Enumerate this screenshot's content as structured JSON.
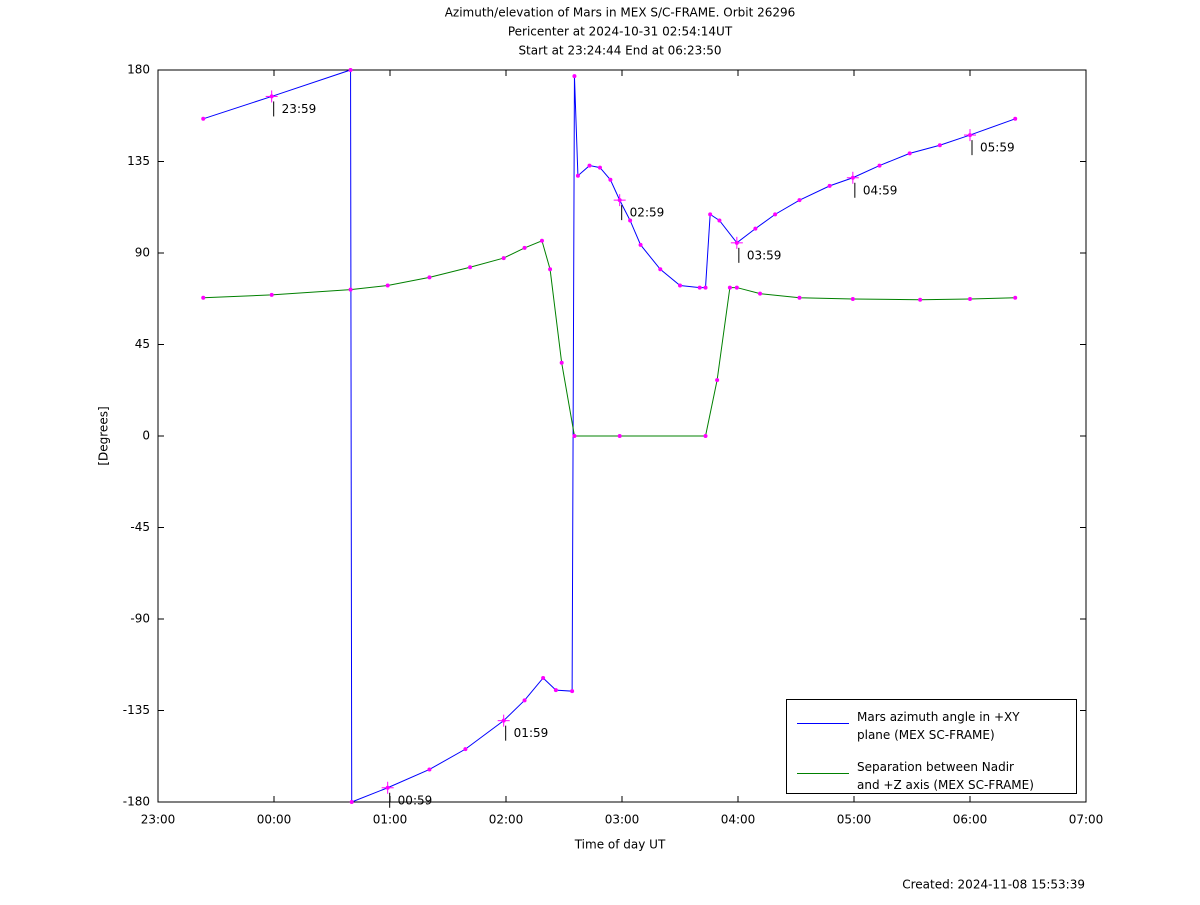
{
  "chart_data": {
    "type": "line",
    "title": "Azimuth/elevation of Mars in MEX S/C-FRAME.  Orbit 26296",
    "subtitle": [
      "Pericenter at 2024-10-31 02:54:14UT",
      "Start at 23:24:44 End at 06:23:50"
    ],
    "xlabel": "Time of day UT",
    "ylabel": "[Degrees]",
    "footnote": "Created: 2024-11-08 15:53:39",
    "xlim": [
      0,
      8
    ],
    "xticks": [
      {
        "value": 0,
        "label": "23:00"
      },
      {
        "value": 1,
        "label": "00:00"
      },
      {
        "value": 2,
        "label": "01:00"
      },
      {
        "value": 3,
        "label": "02:00"
      },
      {
        "value": 4,
        "label": "03:00"
      },
      {
        "value": 5,
        "label": "04:00"
      },
      {
        "value": 6,
        "label": "05:00"
      },
      {
        "value": 7,
        "label": "06:00"
      },
      {
        "value": 8,
        "label": "07:00"
      }
    ],
    "ylim": [
      -180,
      180
    ],
    "yticks": [
      180,
      135,
      90,
      45,
      0,
      -45,
      -90,
      -135,
      -180
    ],
    "legend": "lower right",
    "marker_color": "#ff00ff",
    "series": [
      {
        "name": "Mars azimuth angle in +XY\nplane (MEX SC-FRAME)",
        "color": "#0000ff",
        "x": [
          0.39,
          0.98,
          1.66,
          1.67,
          1.98,
          2.34,
          2.65,
          2.98,
          3.16,
          3.32,
          3.43,
          3.57,
          3.59,
          3.62,
          3.72,
          3.81,
          3.9,
          3.98,
          4.07,
          4.16,
          4.33,
          4.5,
          4.67,
          4.72,
          4.76,
          4.84,
          4.99,
          5.15,
          5.32,
          5.53,
          5.79,
          5.99,
          6.22,
          6.48,
          6.74,
          7.0,
          7.39
        ],
        "values": [
          156,
          167,
          180,
          -180,
          -173,
          -164,
          -154,
          -140,
          -130,
          -119,
          -125,
          -125.5,
          177,
          128,
          133,
          132,
          126,
          116,
          106,
          94,
          82,
          74,
          73,
          73,
          109,
          106,
          95,
          102,
          109,
          116,
          123,
          127,
          133,
          139,
          143,
          148,
          156
        ]
      },
      {
        "name": "Separation between Nadir\nand +Z axis (MEX SC-FRAME)",
        "color": "#008000",
        "x": [
          0.39,
          0.98,
          1.66,
          1.98,
          2.34,
          2.69,
          2.98,
          3.16,
          3.31,
          3.38,
          3.48,
          3.59,
          3.98,
          4.72,
          4.82,
          4.93,
          4.99,
          5.19,
          5.53,
          5.99,
          6.57,
          7.0,
          7.39
        ],
        "values": [
          68,
          69.4,
          72,
          74,
          78,
          83,
          87.5,
          92.5,
          96,
          82,
          36,
          0,
          0,
          0,
          27.5,
          73,
          73,
          70,
          68,
          67.4,
          67,
          67.4,
          68
        ]
      }
    ],
    "annotations": [
      {
        "text": "23:59",
        "x": 0.98,
        "y": 167
      },
      {
        "text": "00:59",
        "x": 1.98,
        "y": -173
      },
      {
        "text": "01:59",
        "x": 2.98,
        "y": -140
      },
      {
        "text": "02:59",
        "x": 3.98,
        "y": 116
      },
      {
        "text": "03:59",
        "x": 4.99,
        "y": 95
      },
      {
        "text": "04:59",
        "x": 5.99,
        "y": 127
      },
      {
        "text": "05:59",
        "x": 7.0,
        "y": 148
      }
    ]
  }
}
